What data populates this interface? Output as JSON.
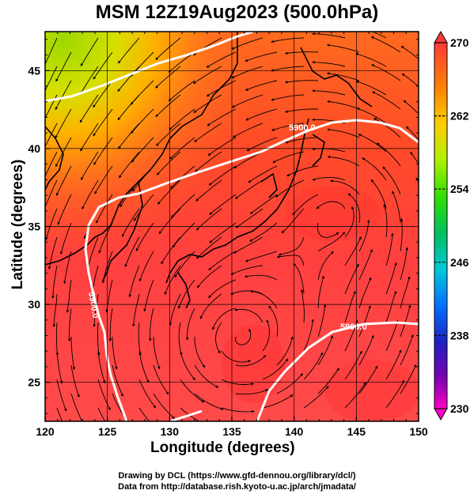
{
  "title": "MSM 12Z19Aug2023 (500.0hPa)",
  "x_axis": {
    "label": "Longitude (degrees)",
    "ticks": [
      "120",
      "125",
      "130",
      "135",
      "140",
      "145",
      "150"
    ]
  },
  "y_axis": {
    "label": "Latitude  (degrees)",
    "ticks": [
      "25",
      "30",
      "35",
      "40",
      "45"
    ]
  },
  "colorbar": {
    "ticks": [
      "270",
      "262",
      "254",
      "246",
      "238",
      "230"
    ],
    "colors": [
      "#ff3a3a",
      "#ff8a00",
      "#ffd200",
      "#7cff00",
      "#00c060",
      "#00c8d8",
      "#0060ff",
      "#2020c0",
      "#8000b0",
      "#ff00c8"
    ]
  },
  "contour_labels": [
    "5900.0",
    "5900.0",
    "5900.0"
  ],
  "credits": {
    "line1": "Drawing by DCL (https://www.gfd-dennou.org/library/dcl/)",
    "line2": "Data from http://database.rish.kyoto-u.ac.jp/arch/jmadata/"
  },
  "chart_data": {
    "type": "heatmap",
    "title": "MSM 12Z19Aug2023 (500.0hPa)",
    "xlabel": "Longitude (degrees)",
    "ylabel": "Latitude  (degrees)",
    "xlim": [
      120,
      150
    ],
    "ylim": [
      22.5,
      47.5
    ],
    "colorbar_range": [
      230,
      270
    ],
    "colorbar_ticks": [
      270,
      262,
      254,
      246,
      238,
      230
    ],
    "overlay": "streamlines with arrows and 5900.0 geopotential contour",
    "grid": true
  }
}
